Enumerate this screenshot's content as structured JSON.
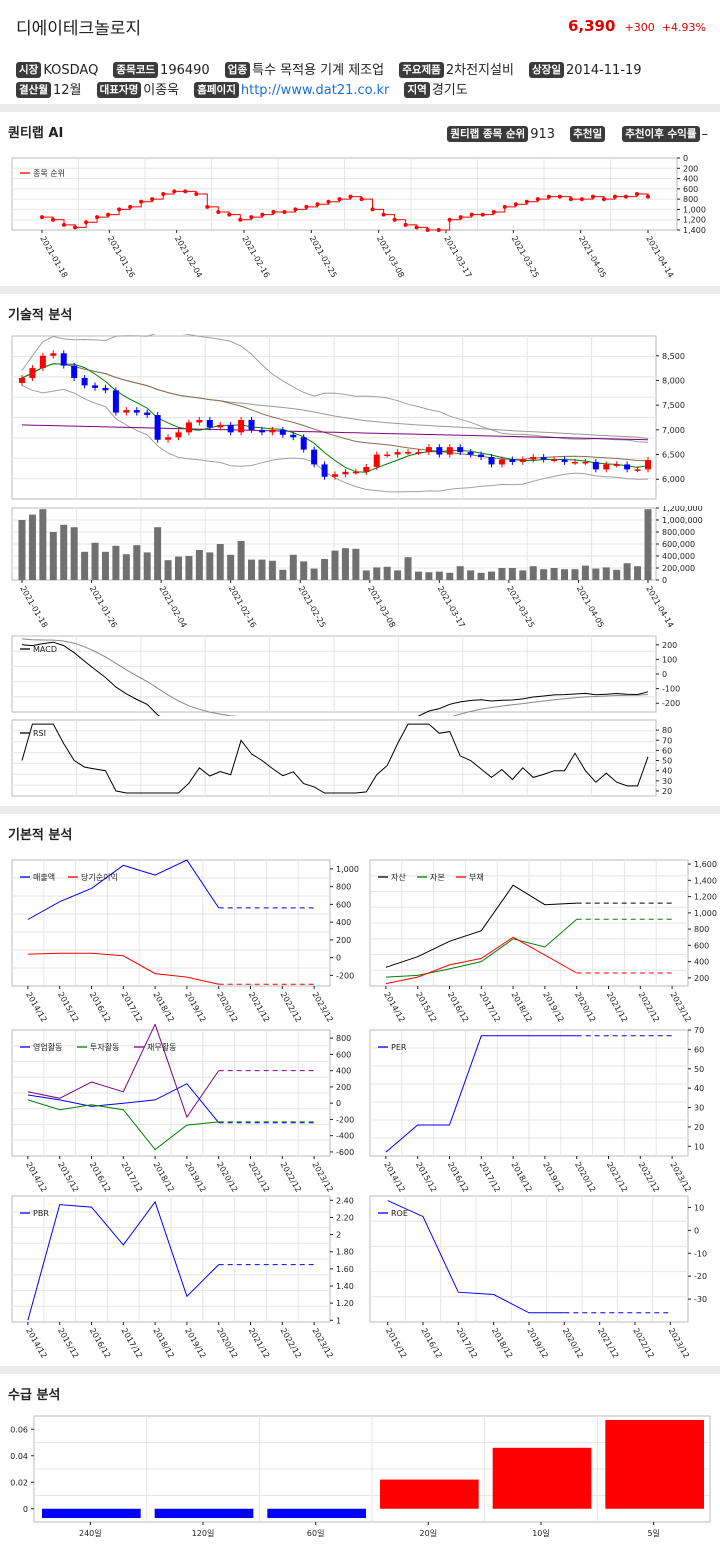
{
  "header": {
    "company": "디에이테크놀로지",
    "price": "6,390",
    "change": "+300",
    "change_pct": "+4.93%"
  },
  "info": [
    {
      "label": "시장",
      "value": "KOSDAQ"
    },
    {
      "label": "종목코드",
      "value": "196490"
    },
    {
      "label": "업종",
      "value": "특수 목적용 기계 제조업"
    },
    {
      "label": "주요제품",
      "value": "2차전지설비"
    },
    {
      "label": "상장일",
      "value": "2014-11-19"
    },
    {
      "label": "결산월",
      "value": "12월"
    },
    {
      "label": "대표자명",
      "value": "이종욱"
    },
    {
      "label": "홈페이지",
      "value": "http://www.dat21.co.kr"
    },
    {
      "label": "지역",
      "value": "경기도"
    }
  ],
  "quantilab": {
    "title": "퀀티랩 AI",
    "rank_label": "퀀티랩 종목 순위",
    "rank_value": "913",
    "rec_date_label": "추천일",
    "rec_return_label": "추천이후 수익률",
    "rec_return_value": "–"
  },
  "colors": {
    "up": "#ff0000",
    "down": "#0000ff",
    "ma_short": "#008000",
    "ma_mid": "#8b6c50",
    "ma_long": "#800080",
    "band": "#a0a0a0"
  },
  "chart_data": [
    {
      "id": "rank",
      "type": "line",
      "legend": [
        "종목 순위"
      ],
      "x_ticks": [
        "2021-01-18",
        "2021-01-26",
        "2021-02-04",
        "2021-02-16",
        "2021-02-25",
        "2021-03-08",
        "2021-03-17",
        "2021-03-25",
        "2021-04-05",
        "2021-04-14"
      ],
      "y_ticks": [
        "0",
        "200",
        "400",
        "600",
        "800",
        "1,000",
        "1,200",
        "1,400"
      ],
      "ylim": [
        0,
        1400
      ],
      "y_inverted": true,
      "series": [
        {
          "values": [
            1150,
            1200,
            1300,
            1350,
            1250,
            1150,
            1100,
            1000,
            950,
            850,
            800,
            700,
            650,
            650,
            700,
            950,
            1050,
            1100,
            1200,
            1150,
            1100,
            1050,
            1050,
            1000,
            950,
            900,
            850,
            800,
            750,
            800,
            1000,
            1100,
            1200,
            1300,
            1350,
            1400,
            1400,
            1200,
            1150,
            1100,
            1100,
            1050,
            950,
            900,
            850,
            800,
            750,
            750,
            800,
            800,
            750,
            800,
            750,
            750,
            700,
            750
          ]
        }
      ]
    },
    {
      "id": "technical-price",
      "type": "candlestick",
      "y_ticks": [
        "6,000",
        "6,500",
        "7,000",
        "7,500",
        "8,000",
        "8,500"
      ],
      "ylim": [
        5600,
        8900
      ],
      "series": [
        {
          "name": "close",
          "values": [
            8050,
            8250,
            8500,
            8550,
            8300,
            8050,
            7900,
            7850,
            7800,
            7350,
            7400,
            7350,
            7300,
            6800,
            6850,
            6950,
            7150,
            7200,
            7050,
            7100,
            6950,
            7200,
            7000,
            6950,
            7000,
            6900,
            6850,
            6600,
            6300,
            6050,
            6100,
            6150,
            6150,
            6250,
            6500,
            6500,
            6550,
            6550,
            6550,
            6650,
            6500,
            6650,
            6550,
            6500,
            6450,
            6300,
            6400,
            6350,
            6400,
            6450,
            6400,
            6400,
            6350,
            6350,
            6350,
            6200,
            6300,
            6300,
            6200,
            6200,
            6390
          ]
        }
      ]
    },
    {
      "id": "technical-volume",
      "type": "bar",
      "x_ticks": [
        "2021-01-18",
        "2021-01-26",
        "2021-02-04",
        "2021-02-16",
        "2021-02-25",
        "2021-03-08",
        "2021-03-17",
        "2021-03-25",
        "2021-04-05",
        "2021-04-14"
      ],
      "y_ticks": [
        "0",
        "200,000",
        "400,000",
        "600,000",
        "800,000",
        "1,000,000",
        "1,200,000"
      ],
      "ylim": [
        0,
        1200000
      ],
      "values": [
        1000000,
        1090000,
        1180000,
        800000,
        920000,
        880000,
        470000,
        620000,
        470000,
        570000,
        430000,
        580000,
        460000,
        880000,
        330000,
        390000,
        400000,
        500000,
        460000,
        600000,
        420000,
        650000,
        340000,
        340000,
        320000,
        170000,
        420000,
        310000,
        190000,
        350000,
        490000,
        530000,
        520000,
        160000,
        210000,
        220000,
        160000,
        380000,
        140000,
        130000,
        140000,
        120000,
        230000,
        160000,
        120000,
        140000,
        200000,
        200000,
        160000,
        230000,
        180000,
        200000,
        180000,
        180000,
        240000,
        190000,
        210000,
        170000,
        280000,
        230000,
        1180000
      ]
    },
    {
      "id": "macd",
      "type": "line",
      "legend": [
        "MACD"
      ],
      "y_ticks": [
        "-200",
        "-100",
        "0",
        "100",
        "200"
      ],
      "ylim": [
        -260,
        260
      ]
    },
    {
      "id": "rsi",
      "type": "line",
      "legend": [
        "RSI"
      ],
      "y_ticks": [
        "20",
        "30",
        "40",
        "50",
        "60",
        "70",
        "80"
      ],
      "ylim": [
        15,
        90
      ]
    },
    {
      "id": "income",
      "type": "line",
      "legend": [
        "매출액",
        "당기순이익"
      ],
      "x_ticks": [
        "2014/12",
        "2015/12",
        "2016/12",
        "2017/12",
        "2018/12",
        "2019/12",
        "2020/12",
        "2021/12",
        "2022/12",
        "2023/12"
      ],
      "y_ticks": [
        "-200",
        "0",
        "200",
        "400",
        "600",
        "800",
        "1,000"
      ],
      "series": [
        {
          "name": "매출액",
          "values": [
            430,
            630,
            780,
            1040,
            930,
            1100,
            560,
            560,
            560,
            560
          ]
        },
        {
          "name": "당기순이익",
          "values": [
            40,
            50,
            50,
            20,
            -180,
            -220,
            -300,
            -300,
            -300,
            -300
          ]
        }
      ]
    },
    {
      "id": "balance",
      "type": "line",
      "legend": [
        "자산",
        "자본",
        "부채"
      ],
      "x_ticks": [
        "2014/12",
        "2015/12",
        "2016/12",
        "2017/12",
        "2018/12",
        "2019/12",
        "2020/12",
        "2021/12",
        "2022/12",
        "2023/12"
      ],
      "y_ticks": [
        "200",
        "400",
        "600",
        "800",
        "1,000",
        "1,200",
        "1,400",
        "1,600"
      ],
      "series": [
        {
          "name": "자산",
          "values": [
            330,
            460,
            650,
            780,
            1340,
            1100,
            1120,
            1120,
            1120,
            1120
          ]
        },
        {
          "name": "자본",
          "values": [
            210,
            230,
            310,
            400,
            680,
            580,
            920,
            920,
            920,
            920
          ]
        },
        {
          "name": "부채",
          "values": [
            130,
            210,
            360,
            440,
            700,
            480,
            260,
            260,
            260,
            260
          ]
        }
      ]
    },
    {
      "id": "cashflow",
      "type": "line",
      "legend": [
        "영업활동",
        "투자활동",
        "재무활동"
      ],
      "x_ticks": [
        "2014/12",
        "2015/12",
        "2016/12",
        "2017/12",
        "2018/12",
        "2019/12",
        "2020/12",
        "2021/12",
        "2022/12",
        "2023/12"
      ],
      "y_ticks": [
        "-600",
        "-400",
        "-200",
        "0",
        "200",
        "400",
        "600",
        "800"
      ],
      "series": [
        {
          "name": "영업활동",
          "values": [
            100,
            40,
            -40,
            0,
            40,
            240,
            -240,
            -240,
            -240,
            -240
          ]
        },
        {
          "name": "투자활동",
          "values": [
            40,
            -80,
            -20,
            -80,
            -570,
            -270,
            -230,
            -230,
            -230,
            -230
          ]
        },
        {
          "name": "재무활동",
          "values": [
            140,
            60,
            260,
            140,
            970,
            -170,
            400,
            400,
            400,
            400
          ]
        }
      ]
    },
    {
      "id": "per",
      "type": "line",
      "legend": [
        "PER"
      ],
      "x_ticks": [
        "2014/12",
        "2015/12",
        "2016/12",
        "2017/12",
        "2018/12",
        "2019/12",
        "2020/12",
        "2021/12",
        "2022/12",
        "2023/12"
      ],
      "y_ticks": [
        "10",
        "20",
        "30",
        "40",
        "50",
        "60",
        "70"
      ],
      "series": [
        {
          "name": "PER",
          "values": [
            7,
            21,
            21,
            67,
            67,
            67,
            67,
            67,
            67,
            67
          ]
        }
      ]
    },
    {
      "id": "pbr",
      "type": "line",
      "legend": [
        "PBR"
      ],
      "x_ticks": [
        "2014/12",
        "2015/12",
        "2016/12",
        "2017/12",
        "2018/12",
        "2019/12",
        "2020/12",
        "2021/12",
        "2022/12",
        "2023/12"
      ],
      "y_ticks": [
        "1",
        "1.20",
        "1.40",
        "1.60",
        "1.80",
        "2",
        "2.20",
        "2.40"
      ],
      "series": [
        {
          "name": "PBR",
          "values": [
            1.0,
            2.35,
            2.32,
            1.88,
            2.38,
            1.28,
            1.65,
            1.65,
            1.65,
            1.65
          ]
        }
      ]
    },
    {
      "id": "roe",
      "type": "line",
      "legend": [
        "ROE"
      ],
      "x_ticks": [
        "2015/12",
        "2016/12",
        "2017/12",
        "2018/12",
        "2019/12",
        "2020/12",
        "2021/12",
        "2022/12",
        "2023/12"
      ],
      "y_ticks": [
        "-30",
        "-20",
        "-10",
        "0",
        "10"
      ],
      "series": [
        {
          "name": "ROE",
          "values": [
            13,
            6,
            -27,
            -28,
            -36,
            -36,
            -36,
            -36,
            -36
          ]
        }
      ]
    },
    {
      "id": "supply",
      "type": "bar",
      "categories": [
        "240일",
        "120일",
        "60일",
        "20일",
        "10일",
        "5일"
      ],
      "values": [
        -0.007,
        -0.007,
        -0.007,
        0.022,
        0.046,
        0.067
      ],
      "y_ticks": [
        "0",
        "0.02",
        "0.04",
        "0.06"
      ],
      "ylim": [
        -0.01,
        0.07
      ]
    }
  ],
  "sections": {
    "technical": "기술적 분석",
    "fundamental": "기본적 분석",
    "supply": "수급 분석"
  }
}
